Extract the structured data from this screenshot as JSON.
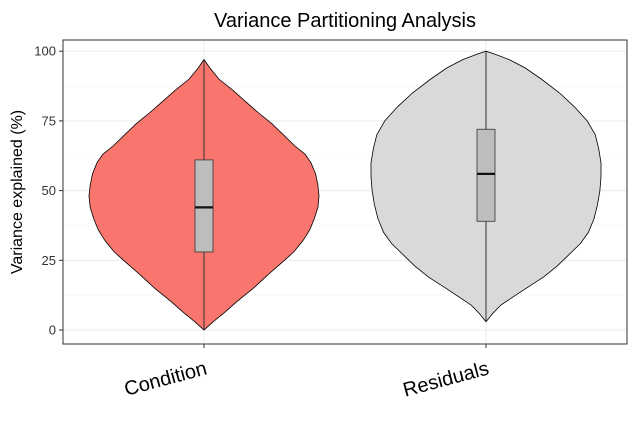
{
  "chart_data": {
    "type": "violin",
    "title": "Variance Partitioning Analysis",
    "xlabel": "",
    "ylabel": "Variance explained (%)",
    "ylim": [
      -5,
      104
    ],
    "yticks": [
      0,
      25,
      50,
      75,
      100
    ],
    "grid": true,
    "categories": [
      "Condition",
      "Residuals"
    ],
    "colors": {
      "Condition": "#F8766D",
      "Residuals": "#D9D9D9"
    },
    "box_color": "#BDBDBD",
    "series": [
      {
        "name": "Condition",
        "box": {
          "q1": 28,
          "median": 44,
          "q3": 61
        },
        "range": [
          0,
          97
        ],
        "profile": [
          [
            0,
            0.0
          ],
          [
            3,
            0.08
          ],
          [
            6,
            0.17
          ],
          [
            10,
            0.28
          ],
          [
            15,
            0.43
          ],
          [
            20,
            0.56
          ],
          [
            25,
            0.7
          ],
          [
            28,
            0.78
          ],
          [
            32,
            0.86
          ],
          [
            36,
            0.92
          ],
          [
            40,
            0.96
          ],
          [
            44,
            0.99
          ],
          [
            48,
            1.0
          ],
          [
            52,
            0.99
          ],
          [
            56,
            0.97
          ],
          [
            60,
            0.93
          ],
          [
            63,
            0.88
          ],
          [
            66,
            0.79
          ],
          [
            70,
            0.69
          ],
          [
            74,
            0.59
          ],
          [
            78,
            0.47
          ],
          [
            82,
            0.36
          ],
          [
            86,
            0.25
          ],
          [
            90,
            0.13
          ],
          [
            94,
            0.05
          ],
          [
            97,
            0.0
          ]
        ]
      },
      {
        "name": "Residuals",
        "box": {
          "q1": 39,
          "median": 56,
          "q3": 72
        },
        "range": [
          3,
          100
        ],
        "profile": [
          [
            3,
            0.0
          ],
          [
            6,
            0.06
          ],
          [
            9,
            0.13
          ],
          [
            12,
            0.24
          ],
          [
            15,
            0.35
          ],
          [
            19,
            0.5
          ],
          [
            23,
            0.62
          ],
          [
            27,
            0.72
          ],
          [
            31,
            0.82
          ],
          [
            35,
            0.89
          ],
          [
            40,
            0.94
          ],
          [
            45,
            0.97
          ],
          [
            50,
            0.99
          ],
          [
            55,
            1.0
          ],
          [
            60,
            1.0
          ],
          [
            65,
            0.98
          ],
          [
            70,
            0.95
          ],
          [
            75,
            0.88
          ],
          [
            80,
            0.77
          ],
          [
            85,
            0.64
          ],
          [
            90,
            0.48
          ],
          [
            94,
            0.34
          ],
          [
            97,
            0.2
          ],
          [
            99,
            0.07
          ],
          [
            100,
            0.0
          ]
        ]
      }
    ]
  }
}
